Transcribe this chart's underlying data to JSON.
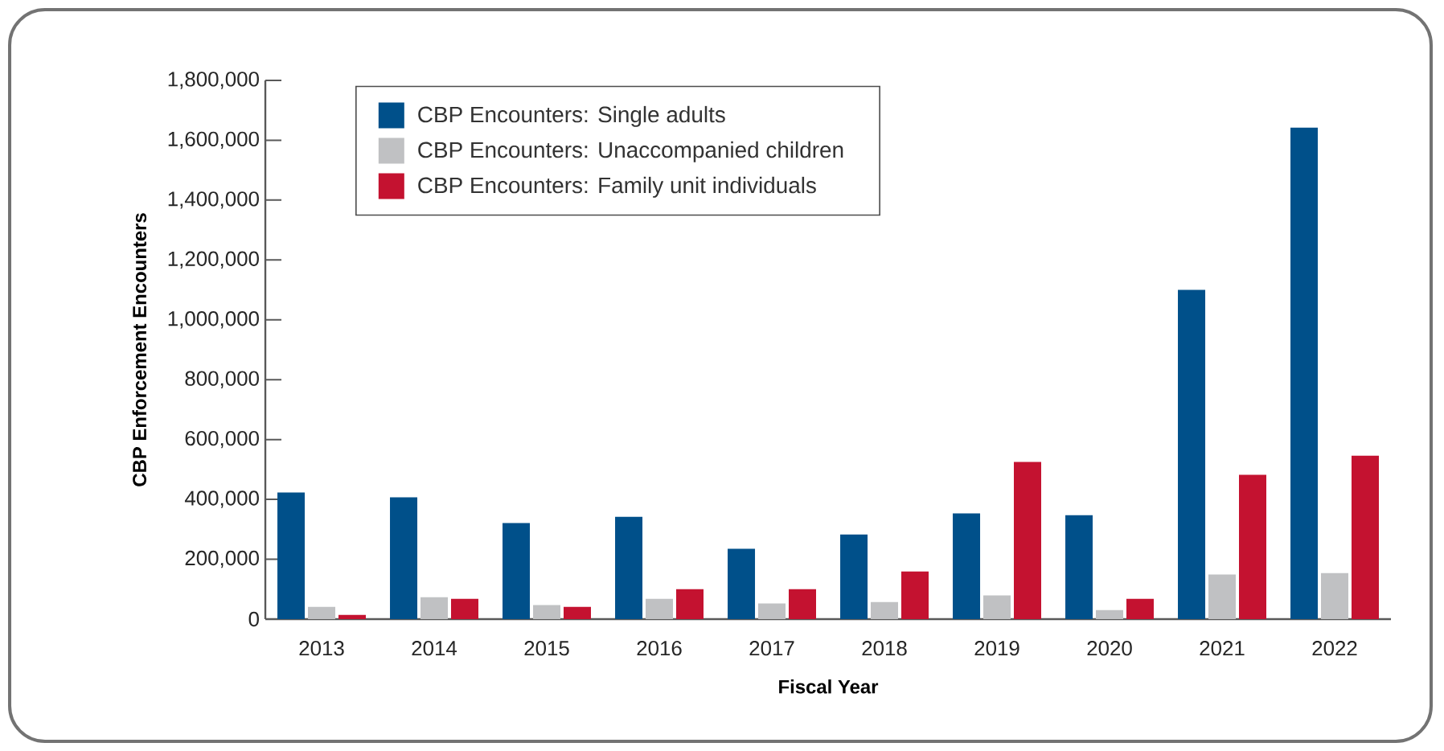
{
  "chart_data": {
    "type": "bar",
    "xlabel": "Fiscal Year",
    "ylabel": "CBP Enforcement Encounters",
    "categories": [
      "2013",
      "2014",
      "2015",
      "2016",
      "2017",
      "2018",
      "2019",
      "2020",
      "2021",
      "2022"
    ],
    "series": [
      {
        "name": "CBP Encounters: Single adults",
        "color": "#00508a",
        "values": [
          423000,
          407000,
          321000,
          342000,
          235000,
          283000,
          353000,
          347000,
          1100000,
          1642000
        ]
      },
      {
        "name": "CBP Encounters: Unaccompanied children",
        "color": "#c0c1c3",
        "values": [
          41000,
          73000,
          47000,
          68000,
          52000,
          57000,
          79000,
          30000,
          149000,
          154000
        ]
      },
      {
        "name": "CBP Encounters: Family unit individuals",
        "color": "#c41230",
        "values": [
          14000,
          68000,
          41000,
          100000,
          100000,
          159000,
          525000,
          68000,
          482000,
          546000
        ]
      }
    ],
    "ylim": [
      0,
      1800000
    ],
    "yticks": [
      {
        "value": 0,
        "label": "0"
      },
      {
        "value": 200000,
        "label": "200,000"
      },
      {
        "value": 400000,
        "label": "400,000"
      },
      {
        "value": 600000,
        "label": "600,000"
      },
      {
        "value": 800000,
        "label": "800,000"
      },
      {
        "value": 1000000,
        "label": "1,000,000"
      },
      {
        "value": 1200000,
        "label": "1,200,000"
      },
      {
        "value": 1400000,
        "label": "1,400,000"
      },
      {
        "value": 1600000,
        "label": "1,600,000"
      },
      {
        "value": 1800000,
        "label": "1,800,000"
      }
    ],
    "grid": false,
    "legend": "top left"
  }
}
